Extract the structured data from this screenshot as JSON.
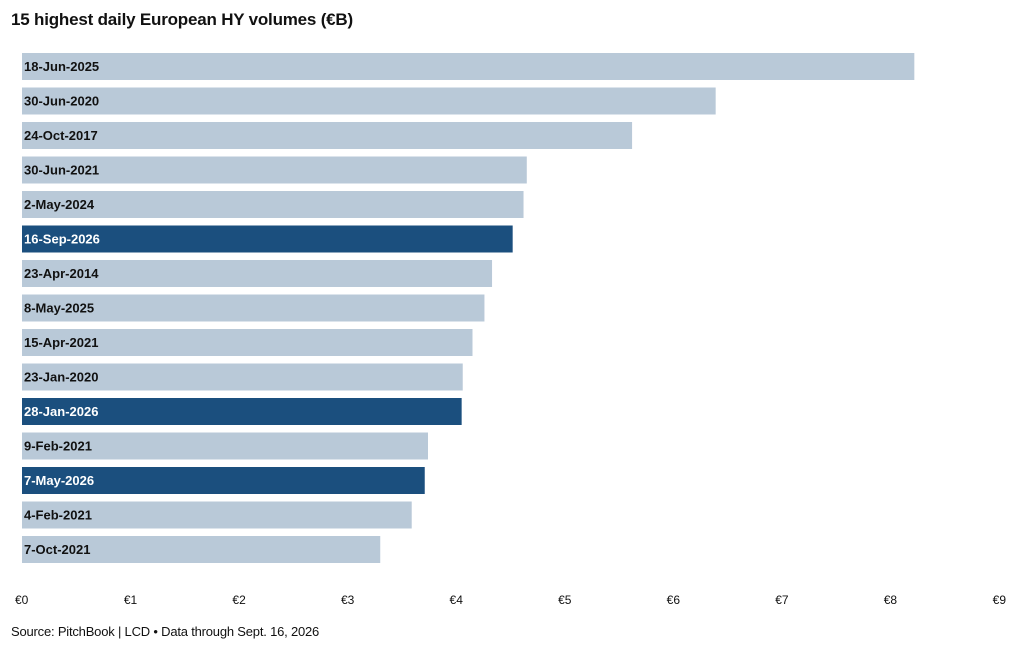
{
  "title": "15 highest daily European HY volumes (€B)",
  "source": "Source: PitchBook | LCD • Data through Sept. 16, 2026",
  "colors": {
    "bar_default": "#b9c9d8",
    "bar_highlight": "#1b4f7e",
    "label_on_default": "#111111",
    "label_on_highlight": "#ffffff"
  },
  "chart_data": {
    "type": "bar",
    "orientation": "horizontal",
    "title": "15 highest daily European HY volumes (€B)",
    "xlabel": "",
    "ylabel": "",
    "xlim": [
      0,
      9
    ],
    "x_ticks": [
      0,
      1,
      2,
      3,
      4,
      5,
      6,
      7,
      8,
      9
    ],
    "x_tick_labels": [
      "€0",
      "€1",
      "€2",
      "€3",
      "€4",
      "€5",
      "€6",
      "€7",
      "€8",
      "€9"
    ],
    "grid": false,
    "legend": false,
    "categories": [
      "18-Jun-2025",
      "30-Jun-2020",
      "24-Oct-2017",
      "30-Jun-2021",
      "2-May-2024",
      "16-Sep-2026",
      "23-Apr-2014",
      "8-May-2025",
      "15-Apr-2021",
      "23-Jan-2020",
      "28-Jan-2026",
      "9-Feb-2021",
      "7-May-2026",
      "4-Feb-2021",
      "7-Oct-2021"
    ],
    "values": [
      8.22,
      6.39,
      5.62,
      4.65,
      4.62,
      4.52,
      4.33,
      4.26,
      4.15,
      4.06,
      4.05,
      3.74,
      3.71,
      3.59,
      3.3
    ],
    "highlighted": [
      false,
      false,
      false,
      false,
      false,
      true,
      false,
      false,
      false,
      false,
      true,
      false,
      true,
      false,
      false
    ]
  }
}
